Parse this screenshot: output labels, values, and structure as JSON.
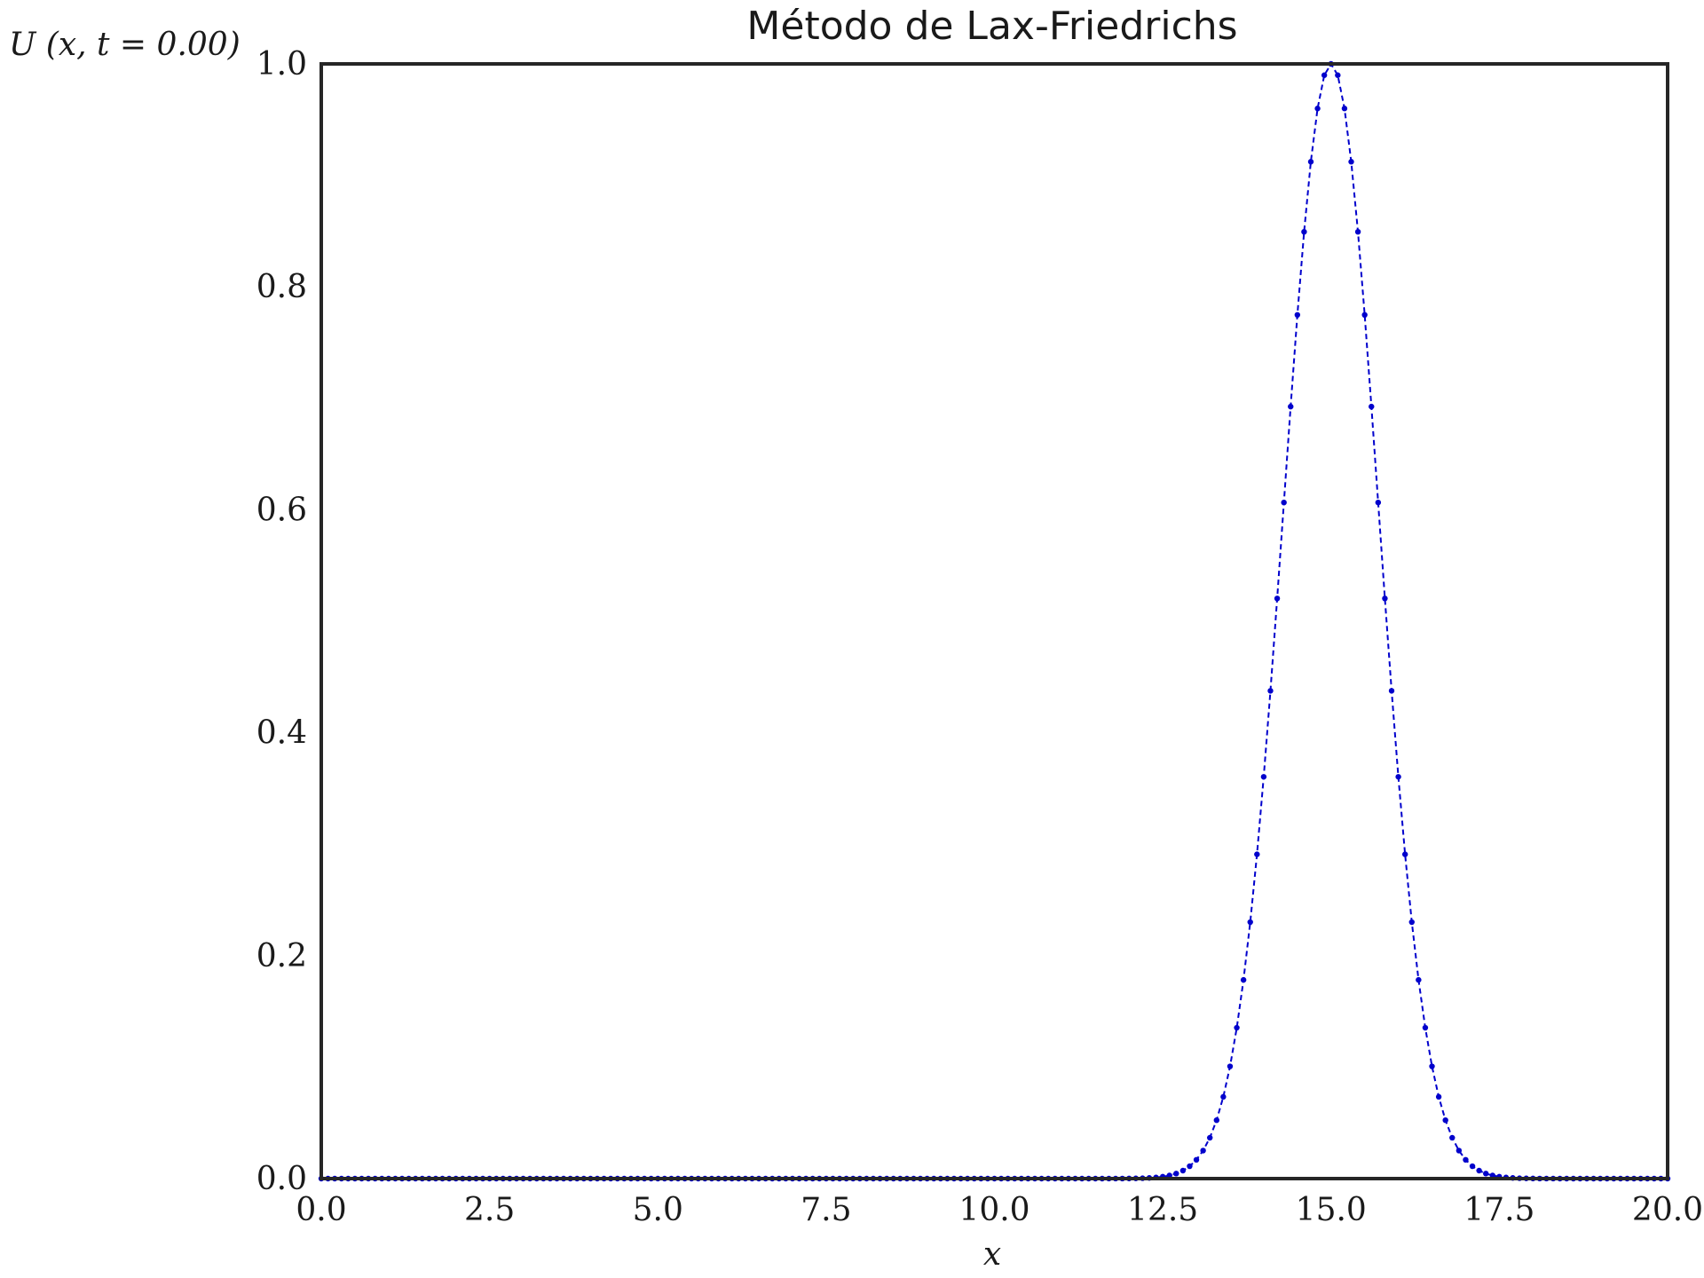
{
  "chart_data": {
    "type": "line",
    "title": "Método de Lax-Friedrichs",
    "xlabel": "x",
    "ylabel": "U (x, t = 0.00)",
    "xlim": [
      0,
      20
    ],
    "ylim": [
      0,
      1
    ],
    "xticks": [
      "0.0",
      "2.5",
      "5.0",
      "7.5",
      "10.0",
      "12.5",
      "15.0",
      "17.5",
      "20.0"
    ],
    "yticks": [
      "0.0",
      "0.2",
      "0.4",
      "0.6",
      "0.8",
      "1.0"
    ],
    "grid": false,
    "series": [
      {
        "color": "#0000cc",
        "line_style": "dashed",
        "marker": "dot",
        "profile": "gaussian",
        "center": 15.0,
        "amplitude": 1.0,
        "sigma": 0.7,
        "x_start": 0.0,
        "x_end": 20.0,
        "dx": 0.1
      }
    ]
  }
}
